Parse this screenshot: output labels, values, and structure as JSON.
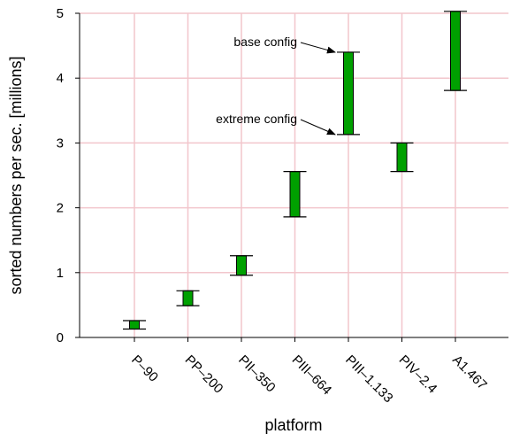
{
  "chart_data": {
    "type": "bar",
    "subtype": "floating-range",
    "title": "",
    "xlabel": "platform",
    "ylabel": "sorted numbers per sec. [millions]",
    "ylim": [
      0,
      5
    ],
    "yticks": [
      0,
      1,
      2,
      3,
      4,
      5
    ],
    "grid": true,
    "categories": [
      "P–90",
      "PP–200",
      "PII–350",
      "PIII–664",
      "PIII–1.133",
      "PIV–2.4",
      "A1.467"
    ],
    "series": [
      {
        "low": [
          0.13,
          0.49,
          0.96,
          1.86,
          3.13,
          2.56,
          3.81
        ],
        "high": [
          0.26,
          0.72,
          1.26,
          2.56,
          4.4,
          3.0,
          5.03
        ]
      }
    ],
    "annotations": [
      {
        "text": "base config",
        "category": "PIII–1.133",
        "points_to": "high"
      },
      {
        "text": "extreme config",
        "category": "PIII–1.133",
        "points_to": "low"
      }
    ],
    "colors": {
      "bar": "#00a000",
      "grid": "#f2c6cc",
      "axis": "#000000"
    }
  }
}
